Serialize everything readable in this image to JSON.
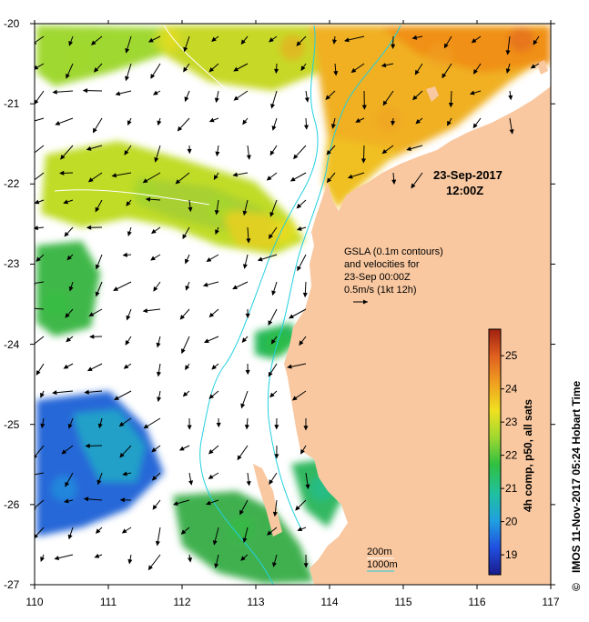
{
  "map": {
    "date": "23-Sep-2017",
    "time": "12:00Z",
    "annotation": {
      "line1": "GSLA (0.1m contours)",
      "line2": "and velocities for",
      "line3": "23-Sep 00:00Z",
      "line4": "0.5m/s (1kt 12h)"
    },
    "depth_legend": {
      "shallow": "200m",
      "deep": "1000m"
    },
    "colorbar": {
      "title": "4h comp, p50, all sats",
      "min": 18.4,
      "max": 25.8,
      "ticks": [
        "19",
        "20",
        "21",
        "22",
        "23",
        "24",
        "25"
      ],
      "stops": [
        "#1a1a8c",
        "#2050e0",
        "#20a0e0",
        "#20c0a0",
        "#30c040",
        "#a0d830",
        "#f0e020",
        "#f0a020",
        "#e06020",
        "#a02010"
      ]
    },
    "credit": "IMOS 11-Nov-2017 05:24 Hobart Time",
    "copyright_symbol": "©",
    "colors": {
      "land": "#f9c8a0",
      "no_data": "#ffffff",
      "contour": "#20d0e0"
    }
  },
  "chart_data": {
    "type": "heatmap",
    "xlabel": "",
    "ylabel": "",
    "xlim": [
      110,
      117
    ],
    "ylim": [
      -27,
      -20
    ],
    "x_ticks": [
      "110",
      "111",
      "112",
      "113",
      "114",
      "115",
      "116",
      "117"
    ],
    "y_ticks": [
      "-20",
      "-21",
      "-22",
      "-23",
      "-24",
      "-25",
      "-26",
      "-27"
    ],
    "sst_patches": [
      {
        "lon": 110.6,
        "lat": -20.4,
        "value": 22.4
      },
      {
        "lon": 111.8,
        "lat": -20.2,
        "value": 23.2
      },
      {
        "lon": 113.5,
        "lat": -20.3,
        "value": 23.8
      },
      {
        "lon": 115.5,
        "lat": -20.4,
        "value": 24.3
      },
      {
        "lon": 116.6,
        "lat": -20.2,
        "value": 24.8
      },
      {
        "lon": 114.8,
        "lat": -21.2,
        "value": 24.2
      },
      {
        "lon": 111.5,
        "lat": -22.1,
        "value": 22.3
      },
      {
        "lon": 112.5,
        "lat": -22.3,
        "value": 22.8
      },
      {
        "lon": 113.4,
        "lat": -22.6,
        "value": 23.0
      },
      {
        "lon": 110.3,
        "lat": -23.5,
        "value": 21.3
      },
      {
        "lon": 112.8,
        "lat": -26.3,
        "value": 21.4
      },
      {
        "lon": 110.4,
        "lat": -25.8,
        "value": 20.2
      },
      {
        "lon": 113.3,
        "lat": -24.0,
        "value": 21.6
      },
      {
        "lon": 113.9,
        "lat": -25.8,
        "value": 21.2
      }
    ]
  }
}
